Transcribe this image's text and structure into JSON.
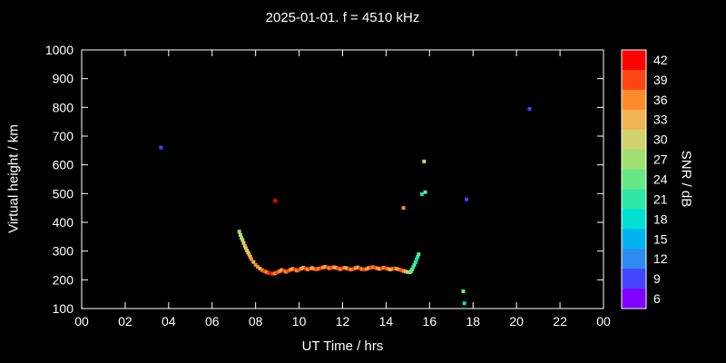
{
  "chart_data": {
    "type": "scatter",
    "title": "2025-01-01. f = 4510 kHz",
    "xlabel": "UT Time / hrs",
    "ylabel": "Virtual height / km",
    "colorbar_label": "SNR / dB",
    "xlim": [
      0,
      24
    ],
    "ylim": [
      100,
      1000
    ],
    "grid": false,
    "marker": "square",
    "background": "#000000",
    "frame_color": "#ffffff",
    "text_color": "#ffffff",
    "x_ticks": {
      "values": [
        0,
        2,
        4,
        6,
        8,
        10,
        12,
        14,
        16,
        18,
        20,
        22,
        24
      ],
      "labels": [
        "00",
        "02",
        "04",
        "06",
        "08",
        "10",
        "12",
        "14",
        "16",
        "18",
        "20",
        "22",
        "00"
      ]
    },
    "y_ticks": [
      100,
      200,
      300,
      400,
      500,
      600,
      700,
      800,
      900,
      1000
    ],
    "colorbar": {
      "min": 6,
      "max": 42,
      "step": 3,
      "ticks": [
        42,
        39,
        36,
        33,
        30,
        27,
        24,
        21,
        18,
        15,
        12,
        9,
        6
      ],
      "colors_ascending": [
        "#8000ff",
        "#4444ff",
        "#2e8bf0",
        "#00b4f0",
        "#00e0d2",
        "#2ee8a6",
        "#66e886",
        "#a0e070",
        "#d2d26e",
        "#f0b450",
        "#ff8c28",
        "#ff4614",
        "#ff0000"
      ]
    },
    "points": [
      [
        3.65,
        660,
        9
      ],
      [
        8.9,
        475,
        42
      ],
      [
        14.8,
        450,
        36
      ],
      [
        15.65,
        498,
        18
      ],
      [
        15.8,
        505,
        24
      ],
      [
        15.75,
        612,
        30
      ],
      [
        17.55,
        160,
        24
      ],
      [
        17.6,
        118,
        18
      ],
      [
        17.7,
        480,
        9
      ],
      [
        20.6,
        795,
        9
      ],
      [
        7.25,
        368,
        27
      ],
      [
        7.3,
        356,
        30
      ],
      [
        7.35,
        346,
        27
      ],
      [
        7.4,
        338,
        30
      ],
      [
        7.45,
        328,
        30
      ],
      [
        7.5,
        318,
        33
      ],
      [
        7.55,
        310,
        30
      ],
      [
        7.6,
        302,
        33
      ],
      [
        7.65,
        295,
        30
      ],
      [
        7.7,
        288,
        33
      ],
      [
        7.75,
        280,
        33
      ],
      [
        7.8,
        272,
        36
      ],
      [
        7.9,
        262,
        33
      ],
      [
        8.0,
        252,
        36
      ],
      [
        8.1,
        245,
        36
      ],
      [
        8.2,
        239,
        33
      ],
      [
        8.3,
        234,
        36
      ],
      [
        8.4,
        230,
        39
      ],
      [
        8.5,
        227,
        36
      ],
      [
        8.6,
        224,
        39
      ],
      [
        8.7,
        222,
        42
      ],
      [
        8.8,
        221,
        39
      ],
      [
        8.9,
        223,
        36
      ],
      [
        9.0,
        226,
        39
      ],
      [
        9.1,
        230,
        36
      ],
      [
        9.2,
        234,
        33
      ],
      [
        9.3,
        231,
        39
      ],
      [
        9.4,
        228,
        36
      ],
      [
        9.5,
        231,
        39
      ],
      [
        9.6,
        235,
        36
      ],
      [
        9.7,
        238,
        33
      ],
      [
        9.8,
        235,
        39
      ],
      [
        9.9,
        232,
        36
      ],
      [
        10.0,
        235,
        39
      ],
      [
        10.1,
        239,
        36
      ],
      [
        10.2,
        242,
        33
      ],
      [
        10.3,
        239,
        39
      ],
      [
        10.4,
        236,
        36
      ],
      [
        10.5,
        239,
        39
      ],
      [
        10.6,
        241,
        33
      ],
      [
        10.7,
        238,
        36
      ],
      [
        10.8,
        236,
        39
      ],
      [
        10.9,
        239,
        36
      ],
      [
        11.0,
        241,
        39
      ],
      [
        11.1,
        243,
        36
      ],
      [
        11.2,
        245,
        33
      ],
      [
        11.3,
        243,
        39
      ],
      [
        11.4,
        240,
        36
      ],
      [
        11.5,
        242,
        39
      ],
      [
        11.6,
        244,
        36
      ],
      [
        11.7,
        242,
        33
      ],
      [
        11.8,
        239,
        39
      ],
      [
        11.9,
        237,
        36
      ],
      [
        12.0,
        240,
        39
      ],
      [
        12.1,
        242,
        36
      ],
      [
        12.2,
        240,
        33
      ],
      [
        12.3,
        237,
        39
      ],
      [
        12.4,
        236,
        36
      ],
      [
        12.5,
        238,
        39
      ],
      [
        12.6,
        241,
        36
      ],
      [
        12.7,
        243,
        33
      ],
      [
        12.8,
        240,
        39
      ],
      [
        12.9,
        237,
        36
      ],
      [
        13.0,
        236,
        39
      ],
      [
        13.1,
        238,
        36
      ],
      [
        13.2,
        241,
        33
      ],
      [
        13.3,
        243,
        39
      ],
      [
        13.4,
        244,
        36
      ],
      [
        13.5,
        242,
        39
      ],
      [
        13.6,
        240,
        36
      ],
      [
        13.7,
        238,
        33
      ],
      [
        13.8,
        240,
        39
      ],
      [
        13.9,
        242,
        36
      ],
      [
        14.0,
        240,
        39
      ],
      [
        14.1,
        238,
        36
      ],
      [
        14.2,
        236,
        33
      ],
      [
        14.3,
        238,
        36
      ],
      [
        14.4,
        240,
        39
      ],
      [
        14.5,
        238,
        33
      ],
      [
        14.6,
        236,
        36
      ],
      [
        14.7,
        233,
        39
      ],
      [
        14.8,
        231,
        36
      ],
      [
        14.9,
        229,
        33
      ],
      [
        15.0,
        227,
        30
      ],
      [
        15.1,
        226,
        27
      ],
      [
        15.15,
        230,
        24
      ],
      [
        15.2,
        236,
        24
      ],
      [
        15.25,
        244,
        21
      ],
      [
        15.3,
        252,
        24
      ],
      [
        15.35,
        261,
        21
      ],
      [
        15.4,
        270,
        18
      ],
      [
        15.45,
        280,
        21
      ],
      [
        15.5,
        289,
        24
      ]
    ]
  }
}
